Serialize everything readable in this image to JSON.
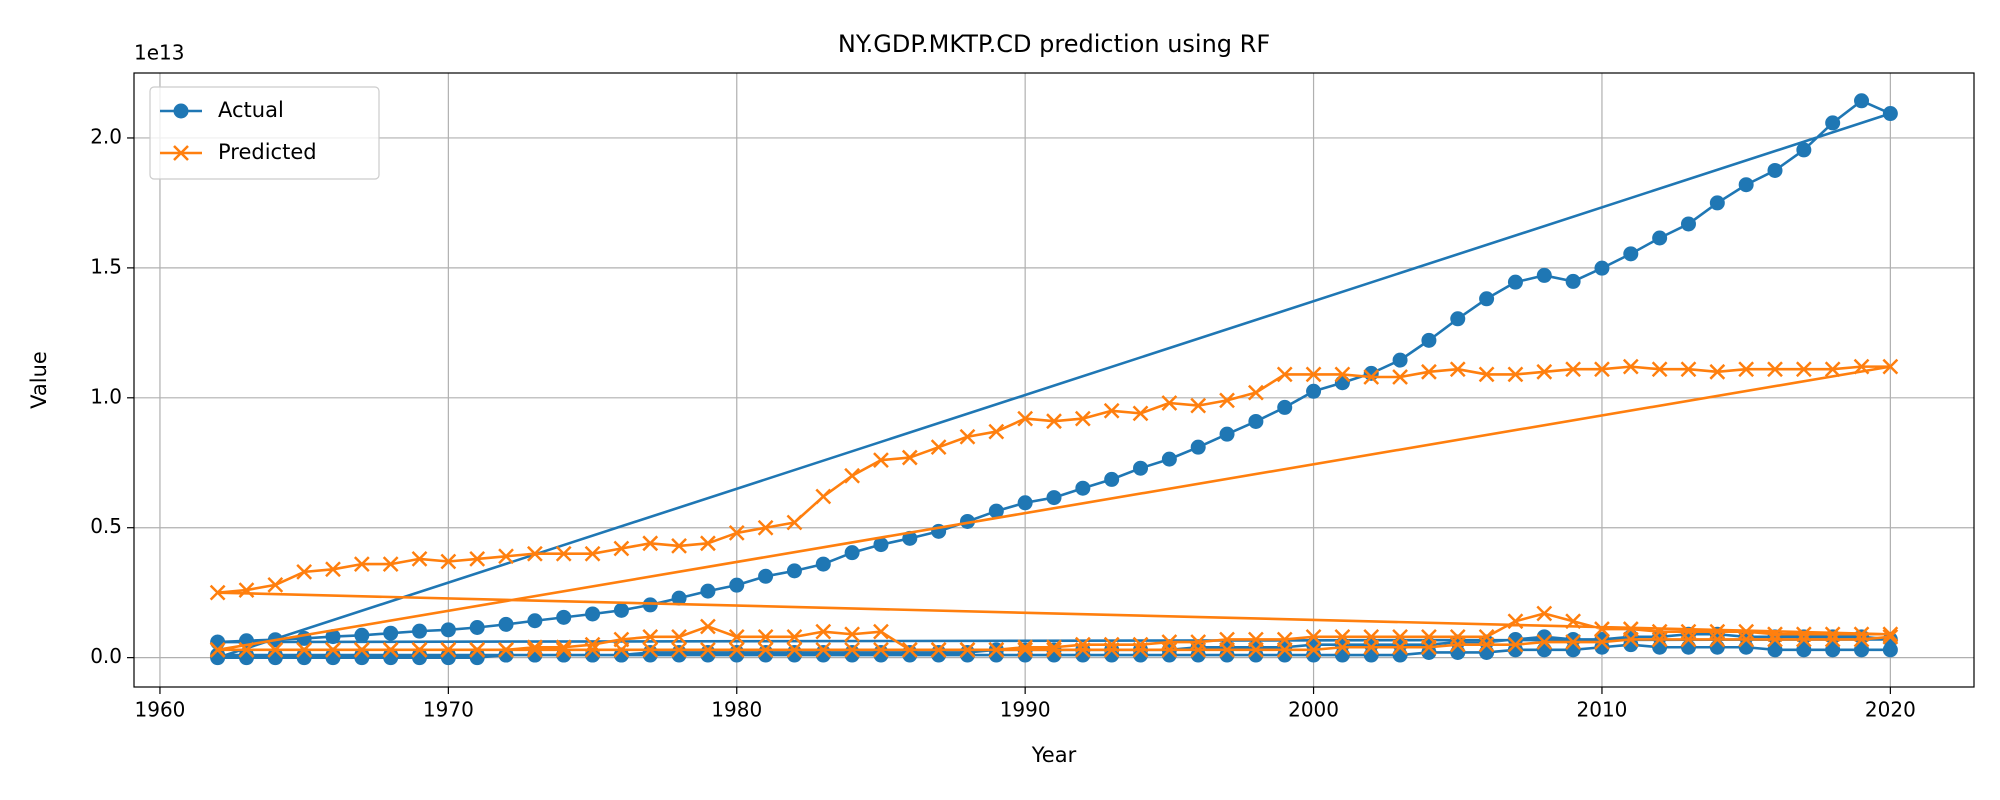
{
  "chart_data": {
    "type": "line",
    "title": "NY.GDP.MKTP.CD prediction using RF",
    "x_label": "Year",
    "y_label": "Value",
    "offset_text": "1e13",
    "xlim": [
      1959.1,
      2022.9
    ],
    "ylim": [
      -0.113,
      2.25
    ],
    "xticks": [
      1960,
      1970,
      1980,
      1990,
      2000,
      2010,
      2020
    ],
    "yticks": [
      {
        "value": 0,
        "label": "0.0"
      },
      0.5,
      {
        "value": 1,
        "label": "1.0"
      },
      1.5,
      {
        "value": 2,
        "label": "2.0"
      }
    ],
    "grid": true,
    "legend": "upper left",
    "series": [
      {
        "name": "Actual",
        "color": "#1f77b4",
        "marker": "o",
        "x": [
          1962,
          1963,
          1964,
          1965,
          1966,
          1967,
          1968,
          1969,
          1970,
          1971,
          1972,
          1973,
          1974,
          1975,
          1976,
          1977,
          1978,
          1979,
          1980,
          1981,
          1982,
          1983,
          1984,
          1985,
          1986,
          1987,
          1988,
          1989,
          1990,
          1991,
          1992,
          1993,
          1994,
          1995,
          1996,
          1997,
          1998,
          1999,
          2000,
          2001,
          2002,
          2003,
          2004,
          2005,
          2006,
          2007,
          2008,
          2009,
          2010,
          2011,
          2012,
          2013,
          2014,
          2015,
          2016,
          2017,
          2018,
          2019,
          2020,
          1962,
          1963,
          1964,
          1965,
          1966,
          1967,
          1968,
          1969,
          1970,
          1971,
          1972,
          1973,
          1974,
          1975,
          1976,
          1977,
          1978,
          1979,
          1980,
          1981,
          1982,
          1983,
          1984,
          1985,
          1986,
          1987,
          1988,
          1989,
          1990,
          1991,
          1992,
          1993,
          1994,
          1995,
          1996,
          1997,
          1998,
          1999,
          2000,
          2001,
          2002,
          2003,
          2004,
          2005,
          2006,
          2007,
          2008,
          2009,
          2010,
          2011,
          2012,
          2013,
          2014,
          2015,
          2016,
          2017,
          2018,
          2019,
          2020,
          1962,
          1963,
          1964,
          1965,
          1966,
          1967,
          1968,
          1969,
          1970,
          1971,
          1972,
          1973,
          1974,
          1975,
          1976,
          1977,
          1978,
          1979,
          1980,
          1981,
          1982,
          1983,
          1984,
          1985,
          1986,
          1987,
          1988,
          1989,
          1990,
          1991,
          1992,
          1993,
          1994,
          1995,
          1996,
          1997,
          1998,
          1999,
          2000,
          2001,
          2002,
          2003,
          2004,
          2005,
          2006,
          2007,
          2008,
          2009,
          2010,
          2011,
          2012,
          2013,
          2014,
          2015,
          2016,
          2017,
          2018,
          2019,
          2020
        ],
        "values": [
          0.01,
          0.01,
          0.01,
          0.01,
          0.01,
          0.01,
          0.01,
          0.01,
          0.01,
          0.01,
          0.01,
          0.01,
          0.01,
          0.01,
          0.01,
          0.02,
          0.02,
          0.02,
          0.02,
          0.02,
          0.02,
          0.02,
          0.02,
          0.02,
          0.02,
          0.02,
          0.02,
          0.03,
          0.03,
          0.03,
          0.03,
          0.03,
          0.03,
          0.03,
          0.04,
          0.04,
          0.04,
          0.04,
          0.05,
          0.05,
          0.05,
          0.05,
          0.05,
          0.06,
          0.06,
          0.07,
          0.08,
          0.07,
          0.07,
          0.08,
          0.08,
          0.09,
          0.09,
          0.08,
          0.08,
          0.08,
          0.08,
          0.08,
          0.07,
          0.06,
          0.065,
          0.069,
          0.074,
          0.081,
          0.086,
          0.094,
          0.102,
          0.107,
          0.116,
          0.128,
          0.142,
          0.155,
          0.168,
          0.182,
          0.203,
          0.229,
          0.256,
          0.279,
          0.313,
          0.334,
          0.36,
          0.404,
          0.435,
          0.459,
          0.486,
          0.524,
          0.564,
          0.596,
          0.616,
          0.652,
          0.686,
          0.729,
          0.764,
          0.81,
          0.86,
          0.909,
          0.963,
          1.025,
          1.058,
          1.094,
          1.145,
          1.221,
          1.304,
          1.381,
          1.445,
          1.471,
          1.448,
          1.499,
          1.554,
          1.615,
          1.669,
          1.75,
          1.82,
          1.875,
          1.954,
          2.058,
          2.143,
          2.094,
          0,
          0,
          0,
          0,
          0,
          0,
          0,
          0,
          0,
          0,
          0.01,
          0.01,
          0.01,
          0.01,
          0.01,
          0.01,
          0.01,
          0.01,
          0.01,
          0.01,
          0.01,
          0.01,
          0.01,
          0.01,
          0.01,
          0.01,
          0.01,
          0.01,
          0.01,
          0.01,
          0.01,
          0.01,
          0.01,
          0.01,
          0.01,
          0.01,
          0.01,
          0.01,
          0.01,
          0.01,
          0.01,
          0.01,
          0.02,
          0.02,
          0.02,
          0.03,
          0.03,
          0.03,
          0.04,
          0.05,
          0.04,
          0.04,
          0.04,
          0.04,
          0.03,
          0.03,
          0.03,
          0.03,
          0.03
        ]
      },
      {
        "name": "Predicted",
        "color": "#ff7f0e",
        "marker": "x",
        "x": [
          1962,
          1963,
          1964,
          1965,
          1966,
          1967,
          1968,
          1969,
          1970,
          1971,
          1972,
          1973,
          1974,
          1975,
          1976,
          1977,
          1978,
          1979,
          1980,
          1981,
          1982,
          1983,
          1984,
          1985,
          1986,
          1987,
          1988,
          1989,
          1990,
          1991,
          1992,
          1993,
          1994,
          1995,
          1996,
          1997,
          1998,
          1999,
          2000,
          2001,
          2002,
          2003,
          2004,
          2005,
          2006,
          2007,
          2008,
          2009,
          2010,
          2011,
          2012,
          2013,
          2014,
          2015,
          2016,
          2017,
          2018,
          2019,
          2020,
          1962,
          1963,
          1964,
          1965,
          1966,
          1967,
          1968,
          1969,
          1970,
          1971,
          1972,
          1973,
          1974,
          1975,
          1976,
          1977,
          1978,
          1979,
          1980,
          1981,
          1982,
          1983,
          1984,
          1985,
          1986,
          1987,
          1988,
          1989,
          1990,
          1991,
          1992,
          1993,
          1994,
          1995,
          1996,
          1997,
          1998,
          1999,
          2000,
          2001,
          2002,
          2003,
          2004,
          2005,
          2006,
          2007,
          2008,
          2009,
          2010,
          2011,
          2012,
          2013,
          2014,
          2015,
          2016,
          2017,
          2018,
          2019,
          2020,
          1962,
          1963,
          1964,
          1965,
          1966,
          1967,
          1968,
          1969,
          1970,
          1971,
          1972,
          1973,
          1974,
          1975,
          1976,
          1977,
          1978,
          1979,
          1980,
          1981,
          1982,
          1983,
          1984,
          1985,
          1986,
          1987,
          1988,
          1989,
          1990,
          1991,
          1992,
          1993,
          1994,
          1995,
          1996,
          1997,
          1998,
          1999,
          2000,
          2001,
          2002,
          2003,
          2004,
          2005,
          2006,
          2007,
          2008,
          2009,
          2010,
          2011,
          2012,
          2013,
          2014,
          2015,
          2016,
          2017,
          2018,
          2019,
          2020
        ],
        "values": [
          0.03,
          0.03,
          0.03,
          0.03,
          0.03,
          0.03,
          0.03,
          0.03,
          0.03,
          0.03,
          0.03,
          0.04,
          0.04,
          0.05,
          0.07,
          0.08,
          0.08,
          0.12,
          0.08,
          0.08,
          0.08,
          0.1,
          0.09,
          0.1,
          0.03,
          0.03,
          0.03,
          0.03,
          0.04,
          0.04,
          0.05,
          0.05,
          0.05,
          0.06,
          0.06,
          0.07,
          0.07,
          0.07,
          0.08,
          0.08,
          0.08,
          0.08,
          0.08,
          0.08,
          0.08,
          0.14,
          0.17,
          0.14,
          0.11,
          0.11,
          0.1,
          0.1,
          0.1,
          0.1,
          0.09,
          0.09,
          0.09,
          0.09,
          0.09,
          0.25,
          0.26,
          0.28,
          0.33,
          0.34,
          0.36,
          0.36,
          0.38,
          0.37,
          0.38,
          0.39,
          0.4,
          0.4,
          0.4,
          0.42,
          0.44,
          0.43,
          0.44,
          0.48,
          0.5,
          0.52,
          0.62,
          0.7,
          0.76,
          0.77,
          0.81,
          0.85,
          0.87,
          0.92,
          0.91,
          0.92,
          0.95,
          0.94,
          0.98,
          0.97,
          0.99,
          1.02,
          1.09,
          1.09,
          1.09,
          1.08,
          1.08,
          1.1,
          1.11,
          1.09,
          1.09,
          1.1,
          1.11,
          1.11,
          1.12,
          1.11,
          1.11,
          1.1,
          1.11,
          1.11,
          1.11,
          1.11,
          1.12,
          1.12,
          0.03,
          0.03,
          0.03,
          0.03,
          0.03,
          0.03,
          0.03,
          0.03,
          0.03,
          0.03,
          0.03,
          0.03,
          0.03,
          0.03,
          0.03,
          0.03,
          0.03,
          0.03,
          0.03,
          0.03,
          0.03,
          0.03,
          0.03,
          0.03,
          0.03,
          0.03,
          0.03,
          0.03,
          0.03,
          0.03,
          0.03,
          0.03,
          0.03,
          0.03,
          0.03,
          0.03,
          0.03,
          0.03,
          0.03,
          0.04,
          0.04,
          0.04,
          0.04,
          0.05,
          0.05,
          0.05,
          0.06,
          0.06,
          0.06,
          0.07,
          0.07,
          0.07,
          0.07,
          0.07,
          0.07,
          0.07,
          0.07,
          0.07,
          0.08
        ]
      }
    ]
  }
}
